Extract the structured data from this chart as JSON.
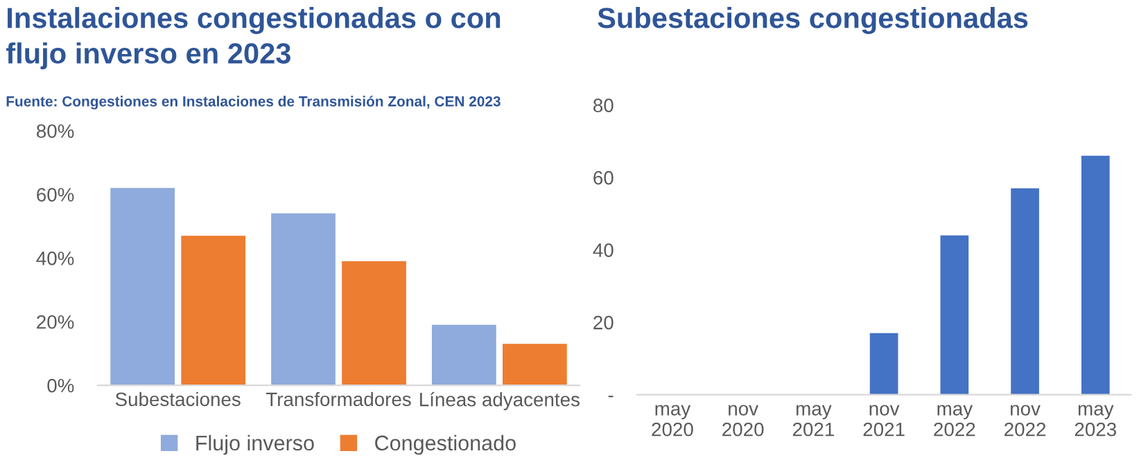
{
  "chart_data": [
    {
      "type": "bar",
      "title": "Instalaciones congestionadas o con\nflujo inverso en 2023",
      "subtitle": "Fuente: Congestiones en Instalaciones de Transmisión Zonal, CEN 2023",
      "categories": [
        "Subestaciones",
        "Transformadores",
        "Líneas adyacentes"
      ],
      "series": [
        {
          "name": "Flujo inverso",
          "color": "#8faadc",
          "values": [
            62,
            54,
            19
          ]
        },
        {
          "name": "Congestionado",
          "color": "#ed7d31",
          "values": [
            47,
            39,
            13
          ]
        }
      ],
      "ylim": [
        0,
        80
      ],
      "yticks": [
        {
          "value": 0,
          "label": "0%"
        },
        {
          "value": 20,
          "label": "20%"
        },
        {
          "value": 40,
          "label": "40%"
        },
        {
          "value": 60,
          "label": "60%"
        },
        {
          "value": 80,
          "label": "80%"
        }
      ],
      "grid": false,
      "legend": "bottom"
    },
    {
      "type": "bar",
      "title": "Subestaciones congestionadas",
      "categories": [
        "may\n2020",
        "nov\n2020",
        "may\n2021",
        "nov\n2021",
        "may\n2022",
        "nov\n2022",
        "may\n2023"
      ],
      "series": [
        {
          "color": "#4472c4",
          "values": [
            0,
            0,
            0,
            17,
            44,
            57,
            66
          ]
        }
      ],
      "ylim": [
        0,
        80
      ],
      "yticks": [
        {
          "value": 0,
          "label": "-"
        },
        20,
        40,
        60,
        80
      ],
      "grid": false,
      "legend": false
    }
  ]
}
